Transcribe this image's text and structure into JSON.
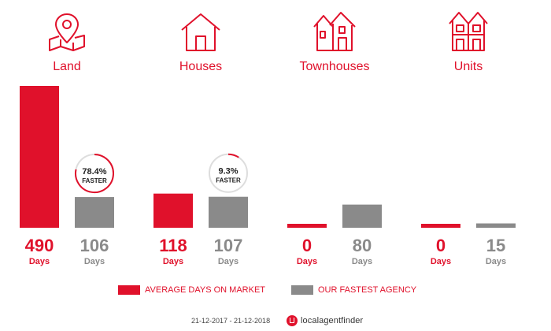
{
  "categories": [
    {
      "label": "Land",
      "icon": "map-pin-icon"
    },
    {
      "label": "Houses",
      "icon": "house-icon"
    },
    {
      "label": "Townhouses",
      "icon": "townhouse-icon"
    },
    {
      "label": "Units",
      "icon": "units-icon"
    }
  ],
  "legend": {
    "average": "AVERAGE DAYS ON MARKET",
    "fastest": "OUR FASTEST AGENCY"
  },
  "footer": {
    "date_range": "21-12-2017 - 21-12-2018",
    "brand": "localagentfinder"
  },
  "colors": {
    "accent": "#e0112b",
    "agency": "#8a8a8a"
  },
  "chart_data": {
    "type": "bar",
    "categories": [
      "Land",
      "Houses",
      "Townhouses",
      "Units"
    ],
    "series": [
      {
        "name": "AVERAGE DAYS ON MARKET",
        "values": [
          490,
          118,
          0,
          0
        ]
      },
      {
        "name": "OUR FASTEST AGENCY",
        "values": [
          106,
          107,
          80,
          15
        ]
      }
    ],
    "unit": "Days",
    "faster": [
      {
        "category": "Land",
        "percent": 78.4,
        "text": "78.4%",
        "label": "FASTER"
      },
      {
        "category": "Houses",
        "percent": 9.3,
        "text": "9.3%",
        "label": "FASTER"
      }
    ]
  }
}
